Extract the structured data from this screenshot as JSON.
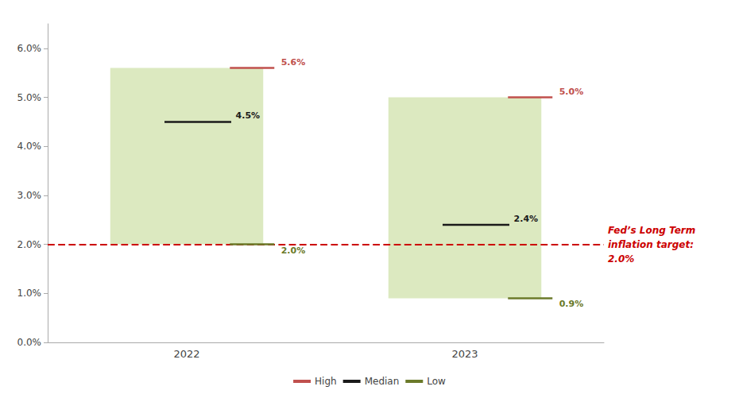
{
  "chart_data": {
    "type": "range",
    "categories": [
      "2022",
      "2023"
    ],
    "color": "#dce9c0",
    "series": [
      {
        "name": "High",
        "color": "#c0504d",
        "values": [
          5.6,
          5.0
        ],
        "value_labels": [
          "5.6%",
          "5.0%"
        ]
      },
      {
        "name": "Median",
        "color": "#1a1a1a",
        "values": [
          4.5,
          2.4
        ],
        "value_labels": [
          "4.5%",
          "2.4%"
        ]
      },
      {
        "name": "Low",
        "color": "#6b7a2a",
        "values": [
          2.0,
          0.9
        ],
        "value_labels": [
          "2.0%",
          "0.9%"
        ]
      }
    ],
    "reference_lines": [
      {
        "y": 2.0,
        "color": "#cc0000",
        "line_style": "dashed",
        "label": "Fed’s Long Term\ninflation target:\n2.0%"
      }
    ],
    "ylim": [
      0.0,
      6.5
    ],
    "yticks": [
      {
        "value": 0,
        "label": "0.0%"
      },
      {
        "value": 1,
        "label": "1.0%"
      },
      {
        "value": 2,
        "label": "2.0%"
      },
      {
        "value": 3,
        "label": "3.0%"
      },
      {
        "value": 4,
        "label": "4.0%"
      },
      {
        "value": 5,
        "label": "5.0%"
      },
      {
        "value": 6,
        "label": "6.0%"
      }
    ],
    "grid": false,
    "legend": "bottom",
    "data_labels": true
  }
}
